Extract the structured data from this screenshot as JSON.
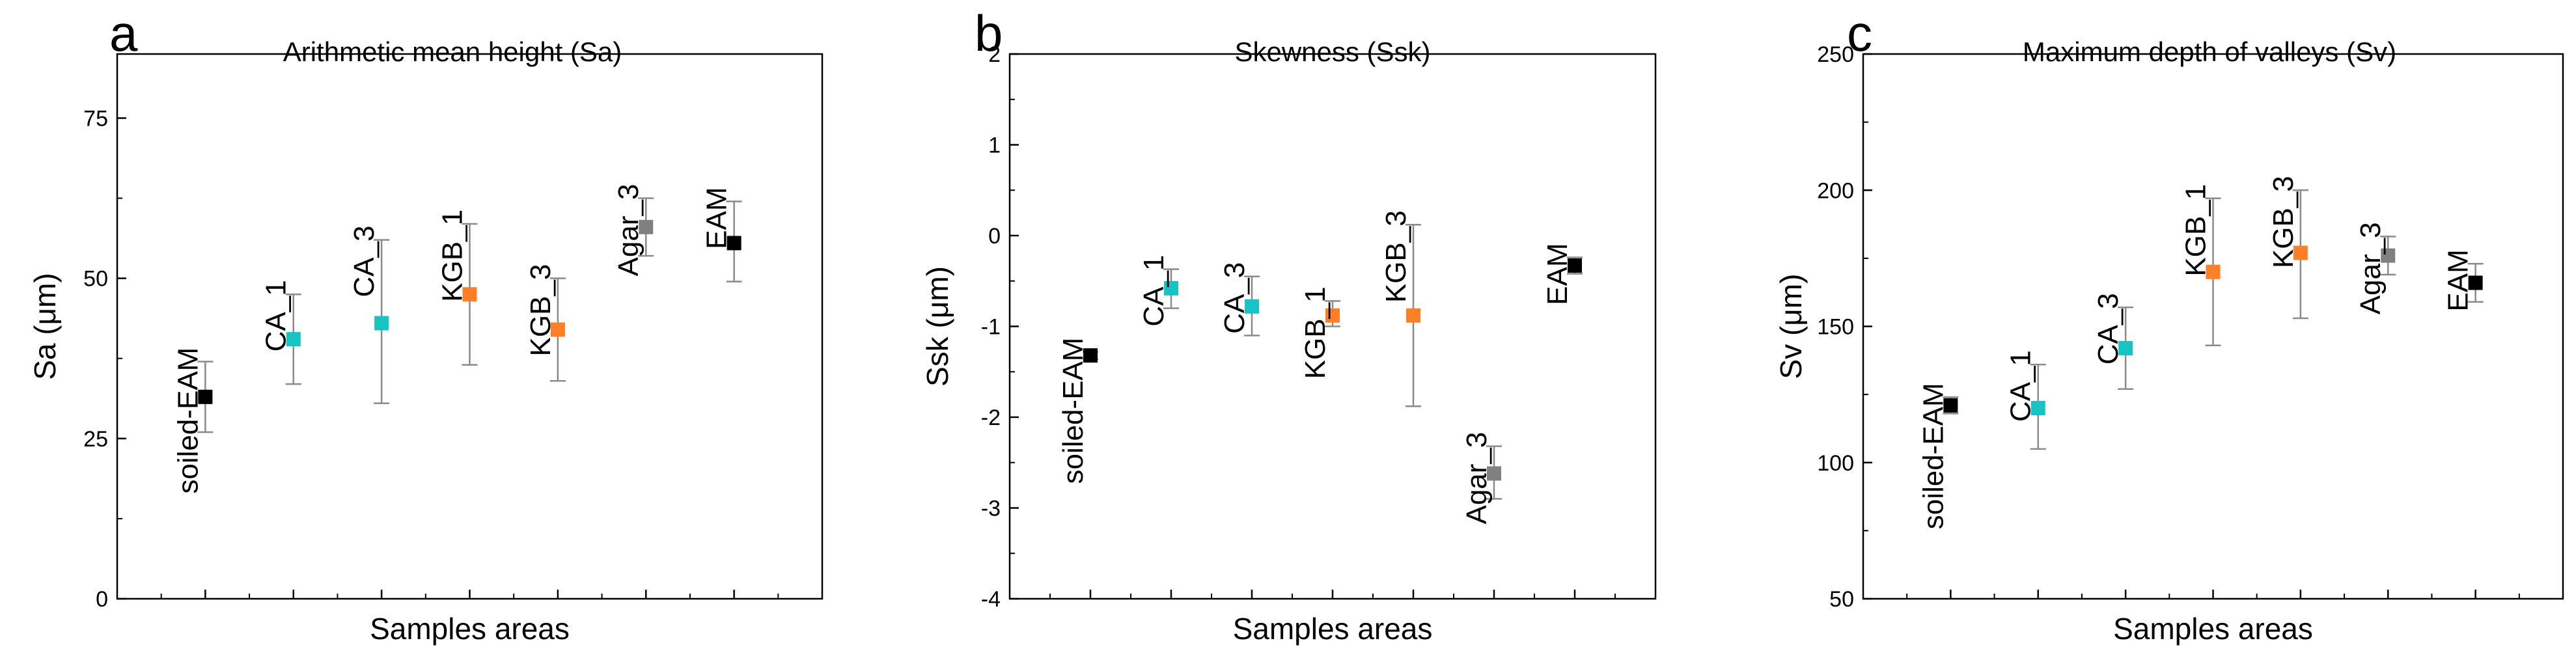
{
  "chart_data": [
    {
      "type": "scatter",
      "panel_letter": "a",
      "title": "Arithmetic mean height (Sa)",
      "xlabel": "Samples areas",
      "ylabel": "Sa (μm)",
      "ylim": [
        0,
        85
      ],
      "yticks": [
        0,
        25,
        50,
        75
      ],
      "categories": [
        "soiled-EAM",
        "CA_1",
        "CA_3",
        "KGB_1",
        "KGB_3",
        "Agar_3",
        "EAM"
      ],
      "points": [
        {
          "label": "soiled-EAM",
          "value": 31.5,
          "err_low": 26.0,
          "err_high": 37.0,
          "color": "#000000"
        },
        {
          "label": "CA_1",
          "value": 40.5,
          "err_low": 33.5,
          "err_high": 47.5,
          "color": "#17c3c3"
        },
        {
          "label": "CA_3",
          "value": 43.0,
          "err_low": 30.5,
          "err_high": 56.0,
          "color": "#17c3c3"
        },
        {
          "label": "KGB_1",
          "value": 47.5,
          "err_low": 36.5,
          "err_high": 58.5,
          "color": "#ff7f27"
        },
        {
          "label": "KGB_3",
          "value": 42.0,
          "err_low": 34.0,
          "err_high": 50.0,
          "color": "#ff7f27"
        },
        {
          "label": "Agar_3",
          "value": 58.0,
          "err_low": 53.5,
          "err_high": 62.5,
          "color": "#808080"
        },
        {
          "label": "EAM",
          "value": 55.5,
          "err_low": 49.5,
          "err_high": 62.0,
          "color": "#000000"
        }
      ]
    },
    {
      "type": "scatter",
      "panel_letter": "b",
      "title": "Skewness (Ssk)",
      "xlabel": "Samples areas",
      "ylabel": "Ssk (μm)",
      "ylim": [
        -4,
        2
      ],
      "yticks": [
        -4,
        -3,
        -2,
        -1,
        0,
        1,
        2
      ],
      "categories": [
        "soiled-EAM",
        "CA_1",
        "CA_3",
        "KGB_1",
        "KGB_3",
        "Agar_3",
        "EAM"
      ],
      "points": [
        {
          "label": "soiled-EAM",
          "value": -1.32,
          "err_low": -1.36,
          "err_high": -1.28,
          "color": "#000000"
        },
        {
          "label": "CA_1",
          "value": -0.58,
          "err_low": -0.8,
          "err_high": -0.37,
          "color": "#17c3c3"
        },
        {
          "label": "CA_3",
          "value": -0.78,
          "err_low": -1.1,
          "err_high": -0.45,
          "color": "#17c3c3"
        },
        {
          "label": "KGB_1",
          "value": -0.88,
          "err_low": -1.0,
          "err_high": -0.72,
          "color": "#ff7f27"
        },
        {
          "label": "KGB_3",
          "value": -0.88,
          "err_low": -1.88,
          "err_high": 0.12,
          "color": "#ff7f27"
        },
        {
          "label": "Agar_3",
          "value": -2.62,
          "err_low": -2.9,
          "err_high": -2.32,
          "color": "#808080"
        },
        {
          "label": "EAM",
          "value": -0.33,
          "err_low": -0.42,
          "err_high": -0.24,
          "color": "#000000"
        }
      ]
    },
    {
      "type": "scatter",
      "panel_letter": "c",
      "title": "Maximum depth of valleys (Sv)",
      "xlabel": "Samples areas",
      "ylabel": "Sv (μm)",
      "ylim": [
        50,
        250
      ],
      "yticks": [
        50,
        100,
        150,
        200,
        250
      ],
      "categories": [
        "soiled-EAM",
        "CA_1",
        "CA_3",
        "KGB_1",
        "KGB_3",
        "Agar_3",
        "EAM"
      ],
      "points": [
        {
          "label": "soiled-EAM",
          "value": 121,
          "err_low": 118,
          "err_high": 124,
          "color": "#000000"
        },
        {
          "label": "CA_1",
          "value": 120,
          "err_low": 105,
          "err_high": 136,
          "color": "#17c3c3"
        },
        {
          "label": "CA_3",
          "value": 142,
          "err_low": 127,
          "err_high": 157,
          "color": "#17c3c3"
        },
        {
          "label": "KGB_1",
          "value": 170,
          "err_low": 143,
          "err_high": 197,
          "color": "#ff7f27"
        },
        {
          "label": "KGB_3",
          "value": 177,
          "err_low": 153,
          "err_high": 200,
          "color": "#ff7f27"
        },
        {
          "label": "Agar_3",
          "value": 176,
          "err_low": 169,
          "err_high": 183,
          "color": "#808080"
        },
        {
          "label": "EAM",
          "value": 166,
          "err_low": 159,
          "err_high": 173,
          "color": "#000000"
        }
      ]
    }
  ]
}
